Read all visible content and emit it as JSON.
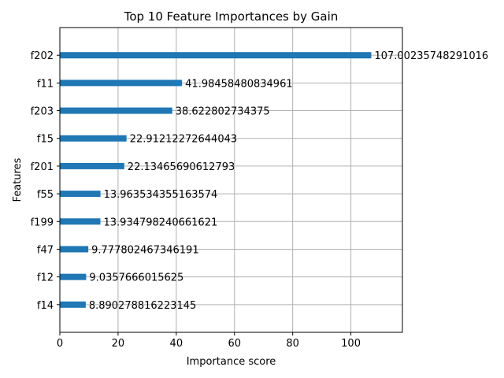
{
  "chart_data": {
    "type": "bar",
    "orientation": "horizontal",
    "title": "Top 10 Feature Importances by Gain",
    "xlabel": "Importance score",
    "ylabel": "Features",
    "categories": [
      "f202",
      "f11",
      "f203",
      "f15",
      "f201",
      "f55",
      "f199",
      "f47",
      "f12",
      "f14"
    ],
    "values": [
      107.00235748291016,
      41.98458480834961,
      38.622802734375,
      22.91212272644043,
      22.13465690612793,
      13.963534355163574,
      13.934798240661621,
      9.777802467346191,
      9.0357666015625,
      8.890278816223145
    ],
    "data_labels": [
      "107.00235748291016",
      "41.98458480834961",
      "38.622802734375",
      "22.91212272644043",
      "22.13465690612793",
      "13.963534355163574",
      "13.934798240661621",
      "9.777802467346191",
      "9.0357666015625",
      "8.890278816223145"
    ],
    "xticks": [
      0,
      20,
      40,
      60,
      80,
      100
    ],
    "xtick_labels": [
      "0",
      "20",
      "40",
      "60",
      "80",
      "100"
    ],
    "xlim": [
      0,
      117.7
    ],
    "grid": true,
    "bar_color": "#1f77b4",
    "grid_color": "#b0b0b0",
    "legend": null
  }
}
